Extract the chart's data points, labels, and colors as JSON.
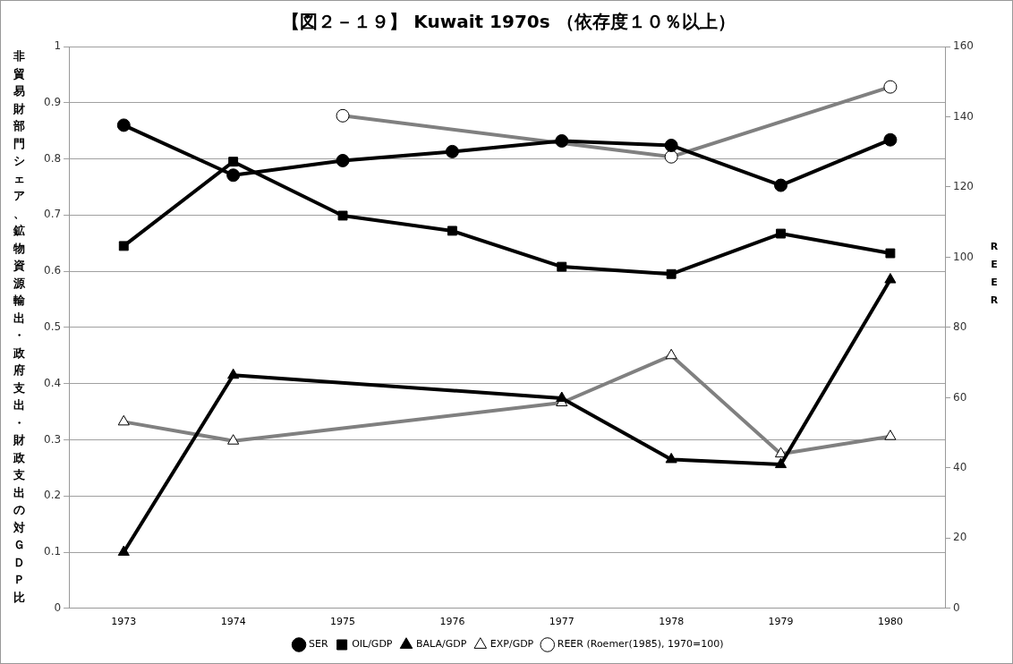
{
  "chart_data": {
    "type": "line",
    "title": "【図２－１９】 Kuwait 1970s （依存度１０％以上）",
    "ylabel": "非貿易財部門シェア、鉱物資源輸出・政府支出・財政支出の対ＧＤＰ比",
    "y2label": "REER",
    "categories": [
      "1973",
      "1974",
      "1975",
      "1976",
      "1977",
      "1978",
      "1979",
      "1980"
    ],
    "series": [
      {
        "name": "SER",
        "color": "#000000",
        "marker": "circle",
        "values": [
          0.86,
          0.771,
          0.797,
          0.813,
          0.832,
          0.824,
          0.753,
          0.834
        ]
      },
      {
        "name": "OIL/GDP",
        "color": "#000000",
        "marker": "square",
        "values": [
          0.645,
          0.795,
          0.699,
          0.672,
          0.608,
          0.595,
          0.667,
          0.632
        ]
      },
      {
        "name": "BALA/GDP",
        "color": "#000000",
        "marker": "triangle",
        "values": [
          0.1,
          0.415,
          null,
          null,
          0.374,
          0.265,
          0.256,
          0.585
        ]
      },
      {
        "name": "EXP/GDP",
        "color": "#808080",
        "marker": "triangle",
        "values": [
          0.332,
          0.298,
          null,
          null,
          0.366,
          0.45,
          0.275,
          0.306
        ]
      },
      {
        "name": "REER (Roemer(1985), 1970=100)",
        "color": "#808080",
        "marker": "circle",
        "axis": "y2",
        "values": [
          null,
          null,
          140.3,
          null,
          null,
          128.6,
          null,
          148.5
        ]
      }
    ],
    "ylim": [
      0,
      1
    ],
    "yticks": [
      0,
      0.1,
      0.2,
      0.3,
      0.4,
      0.5,
      0.6,
      0.7,
      0.8,
      0.9,
      1
    ],
    "y2lim": [
      0,
      160
    ],
    "y2ticks": [
      0,
      20,
      40,
      60,
      80,
      100,
      120,
      140,
      160
    ],
    "grid": "y",
    "legend": "bottom",
    "line_style": "solid"
  }
}
